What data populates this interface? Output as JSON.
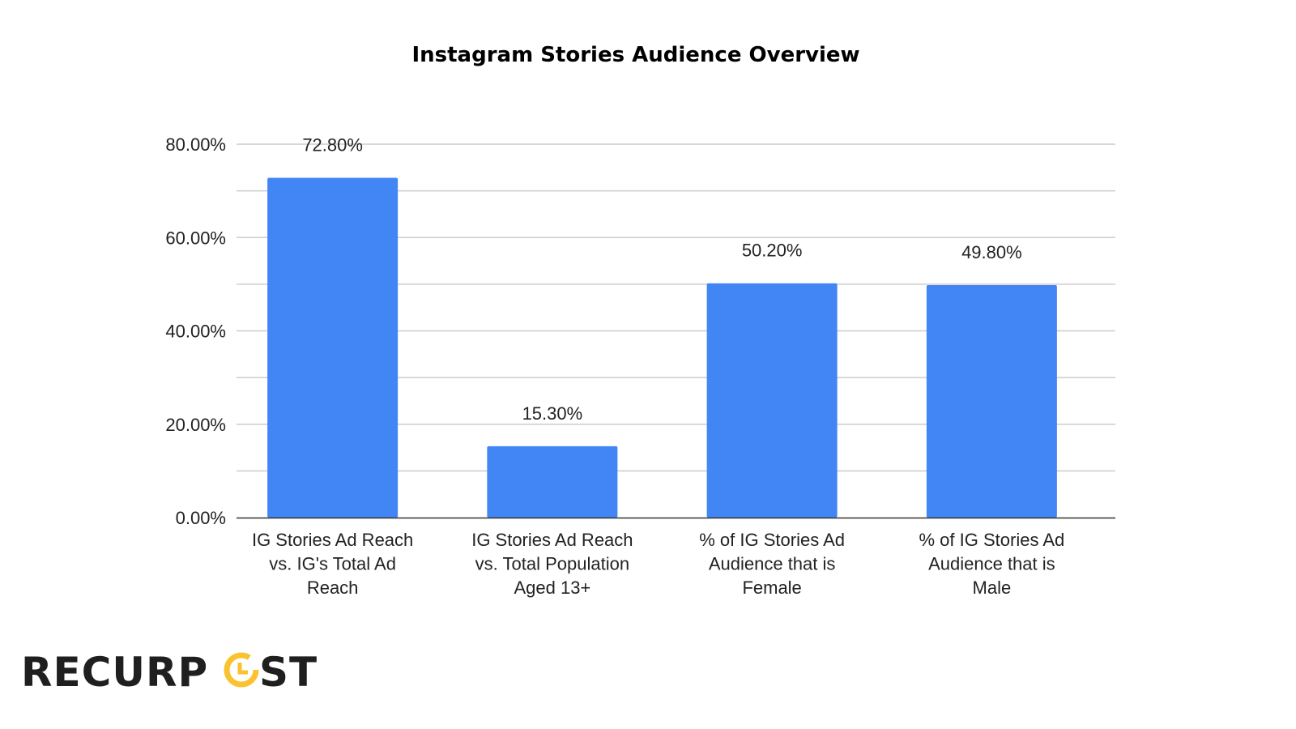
{
  "chart_data": {
    "type": "bar",
    "title": "Instagram Stories Audience Overview",
    "categories": [
      [
        "IG Stories Ad Reach",
        "vs. IG's Total Ad",
        "Reach"
      ],
      [
        "IG Stories Ad Reach",
        "vs. Total Population",
        "Aged 13+"
      ],
      [
        "% of IG Stories Ad",
        "Audience that is",
        "Female"
      ],
      [
        "% of IG Stories Ad",
        "Audience that is",
        "Male"
      ]
    ],
    "values": [
      72.8,
      15.3,
      50.2,
      49.8
    ],
    "data_labels": [
      "72.80%",
      "15.30%",
      "50.20%",
      "49.80%"
    ],
    "ylim": [
      0,
      80
    ],
    "yticks": [
      0,
      20,
      40,
      60,
      80
    ],
    "ytick_labels": [
      "0.00%",
      "20.00%",
      "40.00%",
      "60.00%",
      "80.00%"
    ],
    "minor_gridlines": [
      10,
      30,
      50,
      70
    ],
    "grid": true,
    "legend": "none",
    "xlabel": "",
    "ylabel": "",
    "bar_color": "#4285f4"
  },
  "logo": {
    "text": "RECURPOST",
    "accent_color": "#f9c22e"
  }
}
